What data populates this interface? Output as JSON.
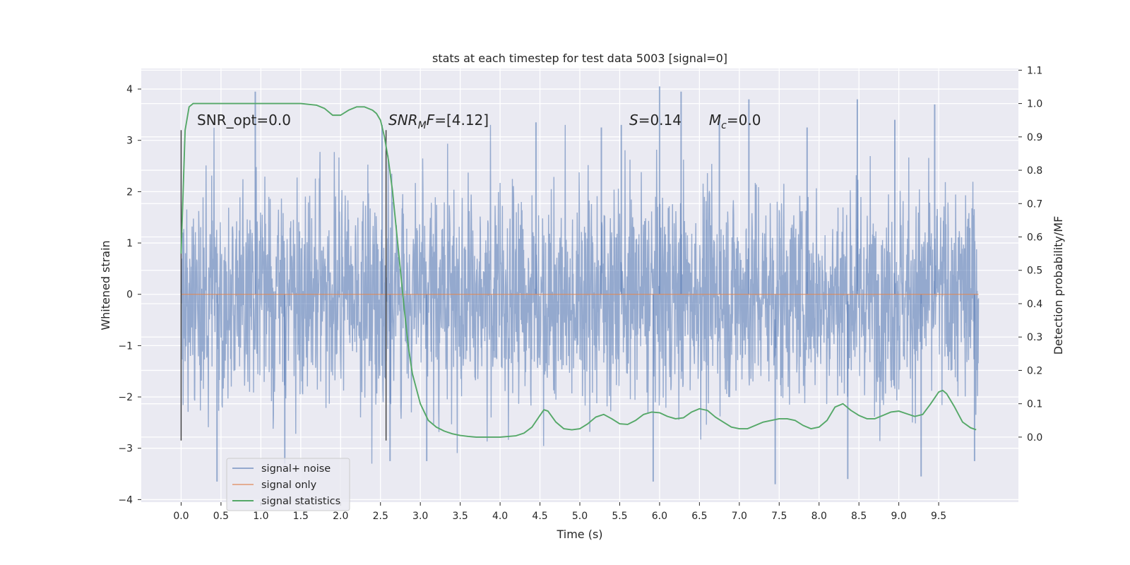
{
  "chart_data": {
    "type": "line",
    "title": "stats at each timestep for test data 5003 [signal=0]",
    "xlabel": "Time (s)",
    "ylabel_left": "Whitened strain",
    "ylabel_right": "Detection probability/MF",
    "xlim": [
      -0.5,
      10.5
    ],
    "ylim_left": [
      -4.05,
      4.4
    ],
    "ylim_right": [
      -0.195,
      1.105
    ],
    "x_ticks": [
      "0.0",
      "0.5",
      "1.0",
      "1.5",
      "2.0",
      "2.5",
      "3.0",
      "3.5",
      "4.0",
      "4.5",
      "5.0",
      "5.5",
      "6.0",
      "6.5",
      "7.0",
      "7.5",
      "8.0",
      "8.5",
      "9.0",
      "9.5"
    ],
    "y_ticks_left": [
      "4",
      "3",
      "2",
      "1",
      "0",
      "−1",
      "−2",
      "−3",
      "−4"
    ],
    "y_ticks_right": [
      "1.1",
      "1.0",
      "0.9",
      "0.8",
      "0.7",
      "0.6",
      "0.5",
      "0.4",
      "0.3",
      "0.2",
      "0.1",
      "0.0"
    ],
    "grid": true,
    "legend_position": "lower-left",
    "series": [
      {
        "name": "signal+ noise",
        "axis": "left",
        "color": "#4c72b0",
        "description_x_range": [
          0.0,
          10.0
        ],
        "peaks": [
          [
            0.93,
            3.95
          ],
          [
            1.3,
            -3.3
          ],
          [
            0.45,
            -3.65
          ],
          [
            2.52,
            3.3
          ],
          [
            2.62,
            -3.25
          ],
          [
            3.08,
            -3.25
          ],
          [
            4.45,
            3.35
          ],
          [
            5.27,
            3.25
          ],
          [
            5.52,
            3.3
          ],
          [
            5.92,
            -3.65
          ],
          [
            6.0,
            4.05
          ],
          [
            6.27,
            3.95
          ],
          [
            6.75,
            3.4
          ],
          [
            7.12,
            3.8
          ],
          [
            7.45,
            -3.7
          ],
          [
            7.85,
            3.25
          ],
          [
            8.36,
            -3.6
          ],
          [
            8.48,
            3.8
          ],
          [
            8.95,
            3.4
          ],
          [
            9.28,
            -3.55
          ],
          [
            9.45,
            3.7
          ],
          [
            9.95,
            -3.25
          ]
        ]
      },
      {
        "name": "signal only",
        "axis": "left",
        "color": "#dd8452",
        "x": [
          0.0,
          10.0
        ],
        "y": [
          0.0,
          0.0
        ]
      },
      {
        "name": "signal statistics",
        "axis": "right",
        "color": "#55a868",
        "x": [
          0.0,
          0.05,
          0.1,
          0.15,
          0.2,
          0.3,
          0.5,
          1.0,
          1.5,
          1.7,
          1.8,
          1.9,
          2.0,
          2.1,
          2.2,
          2.3,
          2.4,
          2.45,
          2.5,
          2.55,
          2.6,
          2.65,
          2.7,
          2.75,
          2.8,
          2.85,
          2.9,
          3.0,
          3.1,
          3.2,
          3.3,
          3.4,
          3.5,
          3.6,
          3.7,
          3.8,
          4.0,
          4.2,
          4.3,
          4.4,
          4.5,
          4.55,
          4.6,
          4.7,
          4.8,
          4.9,
          5.0,
          5.1,
          5.2,
          5.3,
          5.4,
          5.5,
          5.6,
          5.7,
          5.8,
          5.9,
          6.0,
          6.1,
          6.2,
          6.3,
          6.4,
          6.5,
          6.6,
          6.7,
          6.8,
          6.9,
          7.0,
          7.1,
          7.2,
          7.3,
          7.4,
          7.5,
          7.6,
          7.7,
          7.8,
          7.9,
          8.0,
          8.1,
          8.2,
          8.25,
          8.3,
          8.4,
          8.5,
          8.6,
          8.7,
          8.8,
          8.9,
          9.0,
          9.1,
          9.2,
          9.3,
          9.4,
          9.5,
          9.55,
          9.6,
          9.7,
          9.8,
          9.9,
          9.97
        ],
        "y": [
          0.55,
          0.92,
          0.99,
          1.0,
          1.0,
          1.0,
          1.0,
          1.0,
          1.0,
          0.995,
          0.985,
          0.965,
          0.965,
          0.98,
          0.99,
          0.99,
          0.98,
          0.97,
          0.95,
          0.9,
          0.83,
          0.74,
          0.62,
          0.5,
          0.38,
          0.27,
          0.19,
          0.1,
          0.05,
          0.03,
          0.018,
          0.01,
          0.005,
          0.002,
          0.0,
          0.0,
          0.0,
          0.004,
          0.012,
          0.03,
          0.065,
          0.082,
          0.078,
          0.045,
          0.025,
          0.022,
          0.025,
          0.04,
          0.06,
          0.068,
          0.055,
          0.04,
          0.038,
          0.05,
          0.068,
          0.075,
          0.073,
          0.062,
          0.055,
          0.058,
          0.075,
          0.085,
          0.08,
          0.06,
          0.045,
          0.03,
          0.025,
          0.025,
          0.035,
          0.045,
          0.05,
          0.055,
          0.055,
          0.05,
          0.035,
          0.025,
          0.03,
          0.05,
          0.09,
          0.095,
          0.1,
          0.08,
          0.065,
          0.055,
          0.055,
          0.065,
          0.075,
          0.078,
          0.07,
          0.062,
          0.068,
          0.1,
          0.135,
          0.14,
          0.13,
          0.09,
          0.045,
          0.028,
          0.022
        ]
      }
    ],
    "vertical_lines": [
      {
        "x": 0.0,
        "y_range": [
          -2.85,
          3.2
        ]
      },
      {
        "x": 2.57,
        "y_range": [
          -2.85,
          3.2
        ]
      }
    ],
    "annotations": [
      {
        "x": 0.2,
        "y": 3.3,
        "prefix": "SNR_opt=0.0",
        "italic": "",
        "sub": "",
        "suffix": ""
      },
      {
        "x": 2.6,
        "y": 3.3,
        "prefix": "",
        "italic": "SNR",
        "sub": "M",
        "suffix": "F=[4.12]"
      },
      {
        "x": 5.62,
        "y": 3.3,
        "prefix": "",
        "italic": "S",
        "sub": "",
        "suffix": "=0.14"
      },
      {
        "x": 6.62,
        "y": 3.3,
        "prefix": "",
        "italic": "M",
        "sub": "c",
        "suffix": "=0.0"
      }
    ]
  }
}
